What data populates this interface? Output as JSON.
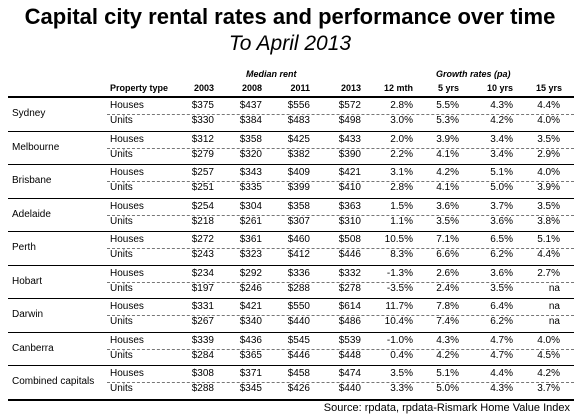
{
  "title": "Capital city rental rates and performance over time",
  "subtitle": "To April 2013",
  "group_headers": {
    "median_rent": "Median rent",
    "growth_rates": "Growth rates (pa)"
  },
  "columns": [
    "Property type",
    "2003",
    "2008",
    "2011",
    "2013",
    "12 mth",
    "5 yrs",
    "10 yrs",
    "15 yrs"
  ],
  "rows": [
    {
      "city": "Sydney",
      "data": [
        [
          "Houses",
          "$375",
          "$437",
          "$556",
          "$572",
          "2.8%",
          "5.5%",
          "4.3%",
          "4.4%"
        ],
        [
          "Units",
          "$330",
          "$384",
          "$483",
          "$498",
          "3.0%",
          "5.3%",
          "4.2%",
          "4.0%"
        ]
      ]
    },
    {
      "city": "Melbourne",
      "data": [
        [
          "Houses",
          "$312",
          "$358",
          "$425",
          "$433",
          "2.0%",
          "3.9%",
          "3.4%",
          "3.5%"
        ],
        [
          "Units",
          "$279",
          "$320",
          "$382",
          "$390",
          "2.2%",
          "4.1%",
          "3.4%",
          "2.9%"
        ]
      ]
    },
    {
      "city": "Brisbane",
      "data": [
        [
          "Houses",
          "$257",
          "$343",
          "$409",
          "$421",
          "3.1%",
          "4.2%",
          "5.1%",
          "4.0%"
        ],
        [
          "Units",
          "$251",
          "$335",
          "$399",
          "$410",
          "2.8%",
          "4.1%",
          "5.0%",
          "3.9%"
        ]
      ]
    },
    {
      "city": "Adelaide",
      "data": [
        [
          "Houses",
          "$254",
          "$304",
          "$358",
          "$363",
          "1.5%",
          "3.6%",
          "3.7%",
          "3.5%"
        ],
        [
          "Units",
          "$218",
          "$261",
          "$307",
          "$310",
          "1.1%",
          "3.5%",
          "3.6%",
          "3.8%"
        ]
      ]
    },
    {
      "city": "Perth",
      "data": [
        [
          "Houses",
          "$272",
          "$361",
          "$460",
          "$508",
          "10.5%",
          "7.1%",
          "6.5%",
          "5.1%"
        ],
        [
          "Units",
          "$243",
          "$323",
          "$412",
          "$446",
          "8.3%",
          "6.6%",
          "6.2%",
          "4.4%"
        ]
      ]
    },
    {
      "city": "Hobart",
      "data": [
        [
          "Houses",
          "$234",
          "$292",
          "$336",
          "$332",
          "-1.3%",
          "2.6%",
          "3.6%",
          "2.7%"
        ],
        [
          "Units",
          "$197",
          "$246",
          "$288",
          "$278",
          "-3.5%",
          "2.4%",
          "3.5%",
          "na"
        ]
      ]
    },
    {
      "city": "Darwin",
      "data": [
        [
          "Houses",
          "$331",
          "$421",
          "$550",
          "$614",
          "11.7%",
          "7.8%",
          "6.4%",
          "na"
        ],
        [
          "Units",
          "$267",
          "$340",
          "$440",
          "$486",
          "10.4%",
          "7.4%",
          "6.2%",
          "na"
        ]
      ]
    },
    {
      "city": "Canberra",
      "data": [
        [
          "Houses",
          "$339",
          "$436",
          "$545",
          "$539",
          "-1.0%",
          "4.3%",
          "4.7%",
          "4.0%"
        ],
        [
          "Units",
          "$284",
          "$365",
          "$446",
          "$448",
          "0.4%",
          "4.2%",
          "4.7%",
          "4.5%"
        ]
      ]
    },
    {
      "city": "Combined capitals",
      "data": [
        [
          "Houses",
          "$308",
          "$371",
          "$458",
          "$474",
          "3.5%",
          "5.1%",
          "4.4%",
          "4.2%"
        ],
        [
          "Units",
          "$288",
          "$345",
          "$426",
          "$440",
          "3.3%",
          "5.0%",
          "4.3%",
          "3.7%"
        ]
      ]
    }
  ],
  "source": "Source: rpdata, rpdata-Rismark Home Value Index"
}
